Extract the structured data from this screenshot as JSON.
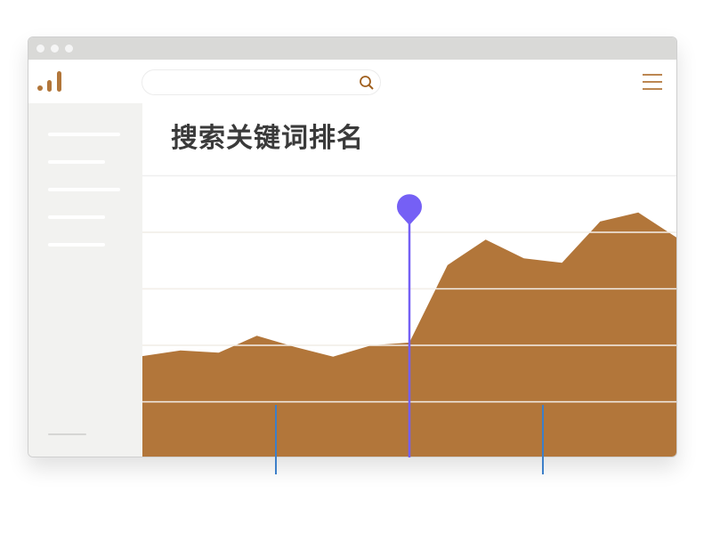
{
  "header": {
    "title": "搜索关键词排名",
    "search": {
      "placeholder": "",
      "value": ""
    }
  },
  "icons": {
    "logo": "bar-chart-logo",
    "search": "search-icon",
    "menu": "hamburger-menu-icon",
    "marker": "map-pin-icon"
  },
  "colors": {
    "accent": "#b2763a",
    "marker": "#7560f5",
    "tick": "#3d7fc8",
    "titlebar": "#d9d9d7",
    "sidebar": "#f2f2f0"
  },
  "sidebar": {
    "items": [
      "",
      "",
      "",
      "",
      ""
    ]
  },
  "chart_data": {
    "type": "area",
    "values": [
      1.81,
      1.91,
      1.87,
      2.17,
      1.97,
      1.8,
      2.0,
      2.05,
      3.42,
      3.87,
      3.54,
      3.46,
      4.19,
      4.35,
      3.91
    ],
    "ylim": [
      0,
      5
    ],
    "grid": true,
    "highlight_index": 7,
    "color": "#b2763a"
  }
}
